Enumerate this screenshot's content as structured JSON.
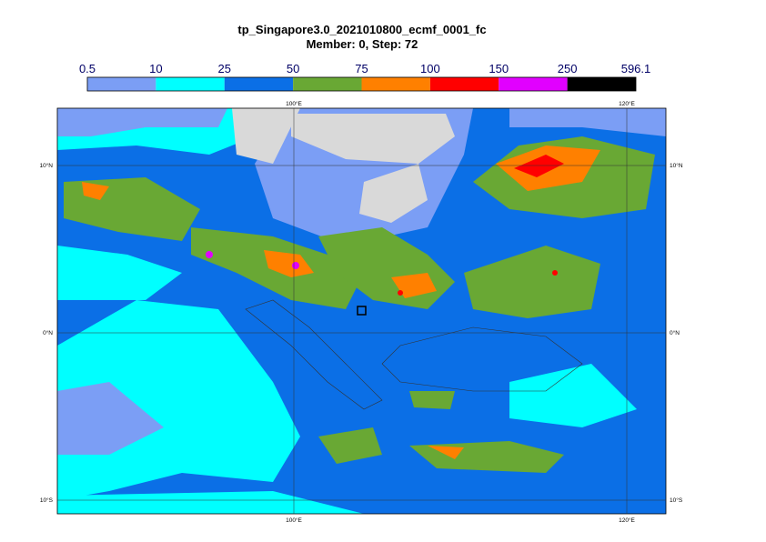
{
  "header": {
    "title": "tp_Singapore3.0_2021010800_ecmf_0001_fc",
    "subtitle": "Member: 0, Step: 72"
  },
  "legend": {
    "labels": [
      "0.5",
      "10",
      "25",
      "50",
      "75",
      "100",
      "150",
      "250",
      "596.1"
    ],
    "colors": [
      "#7b9ef5",
      "#00ffff",
      "#0b6fe6",
      "#69a834",
      "#ff8000",
      "#ff0000",
      "#e100ff",
      "#000000"
    ]
  },
  "map": {
    "lon_labels": [
      "100°E",
      "120°E"
    ],
    "lat_labels": [
      "10°N",
      "0°N",
      "10°S"
    ]
  }
}
